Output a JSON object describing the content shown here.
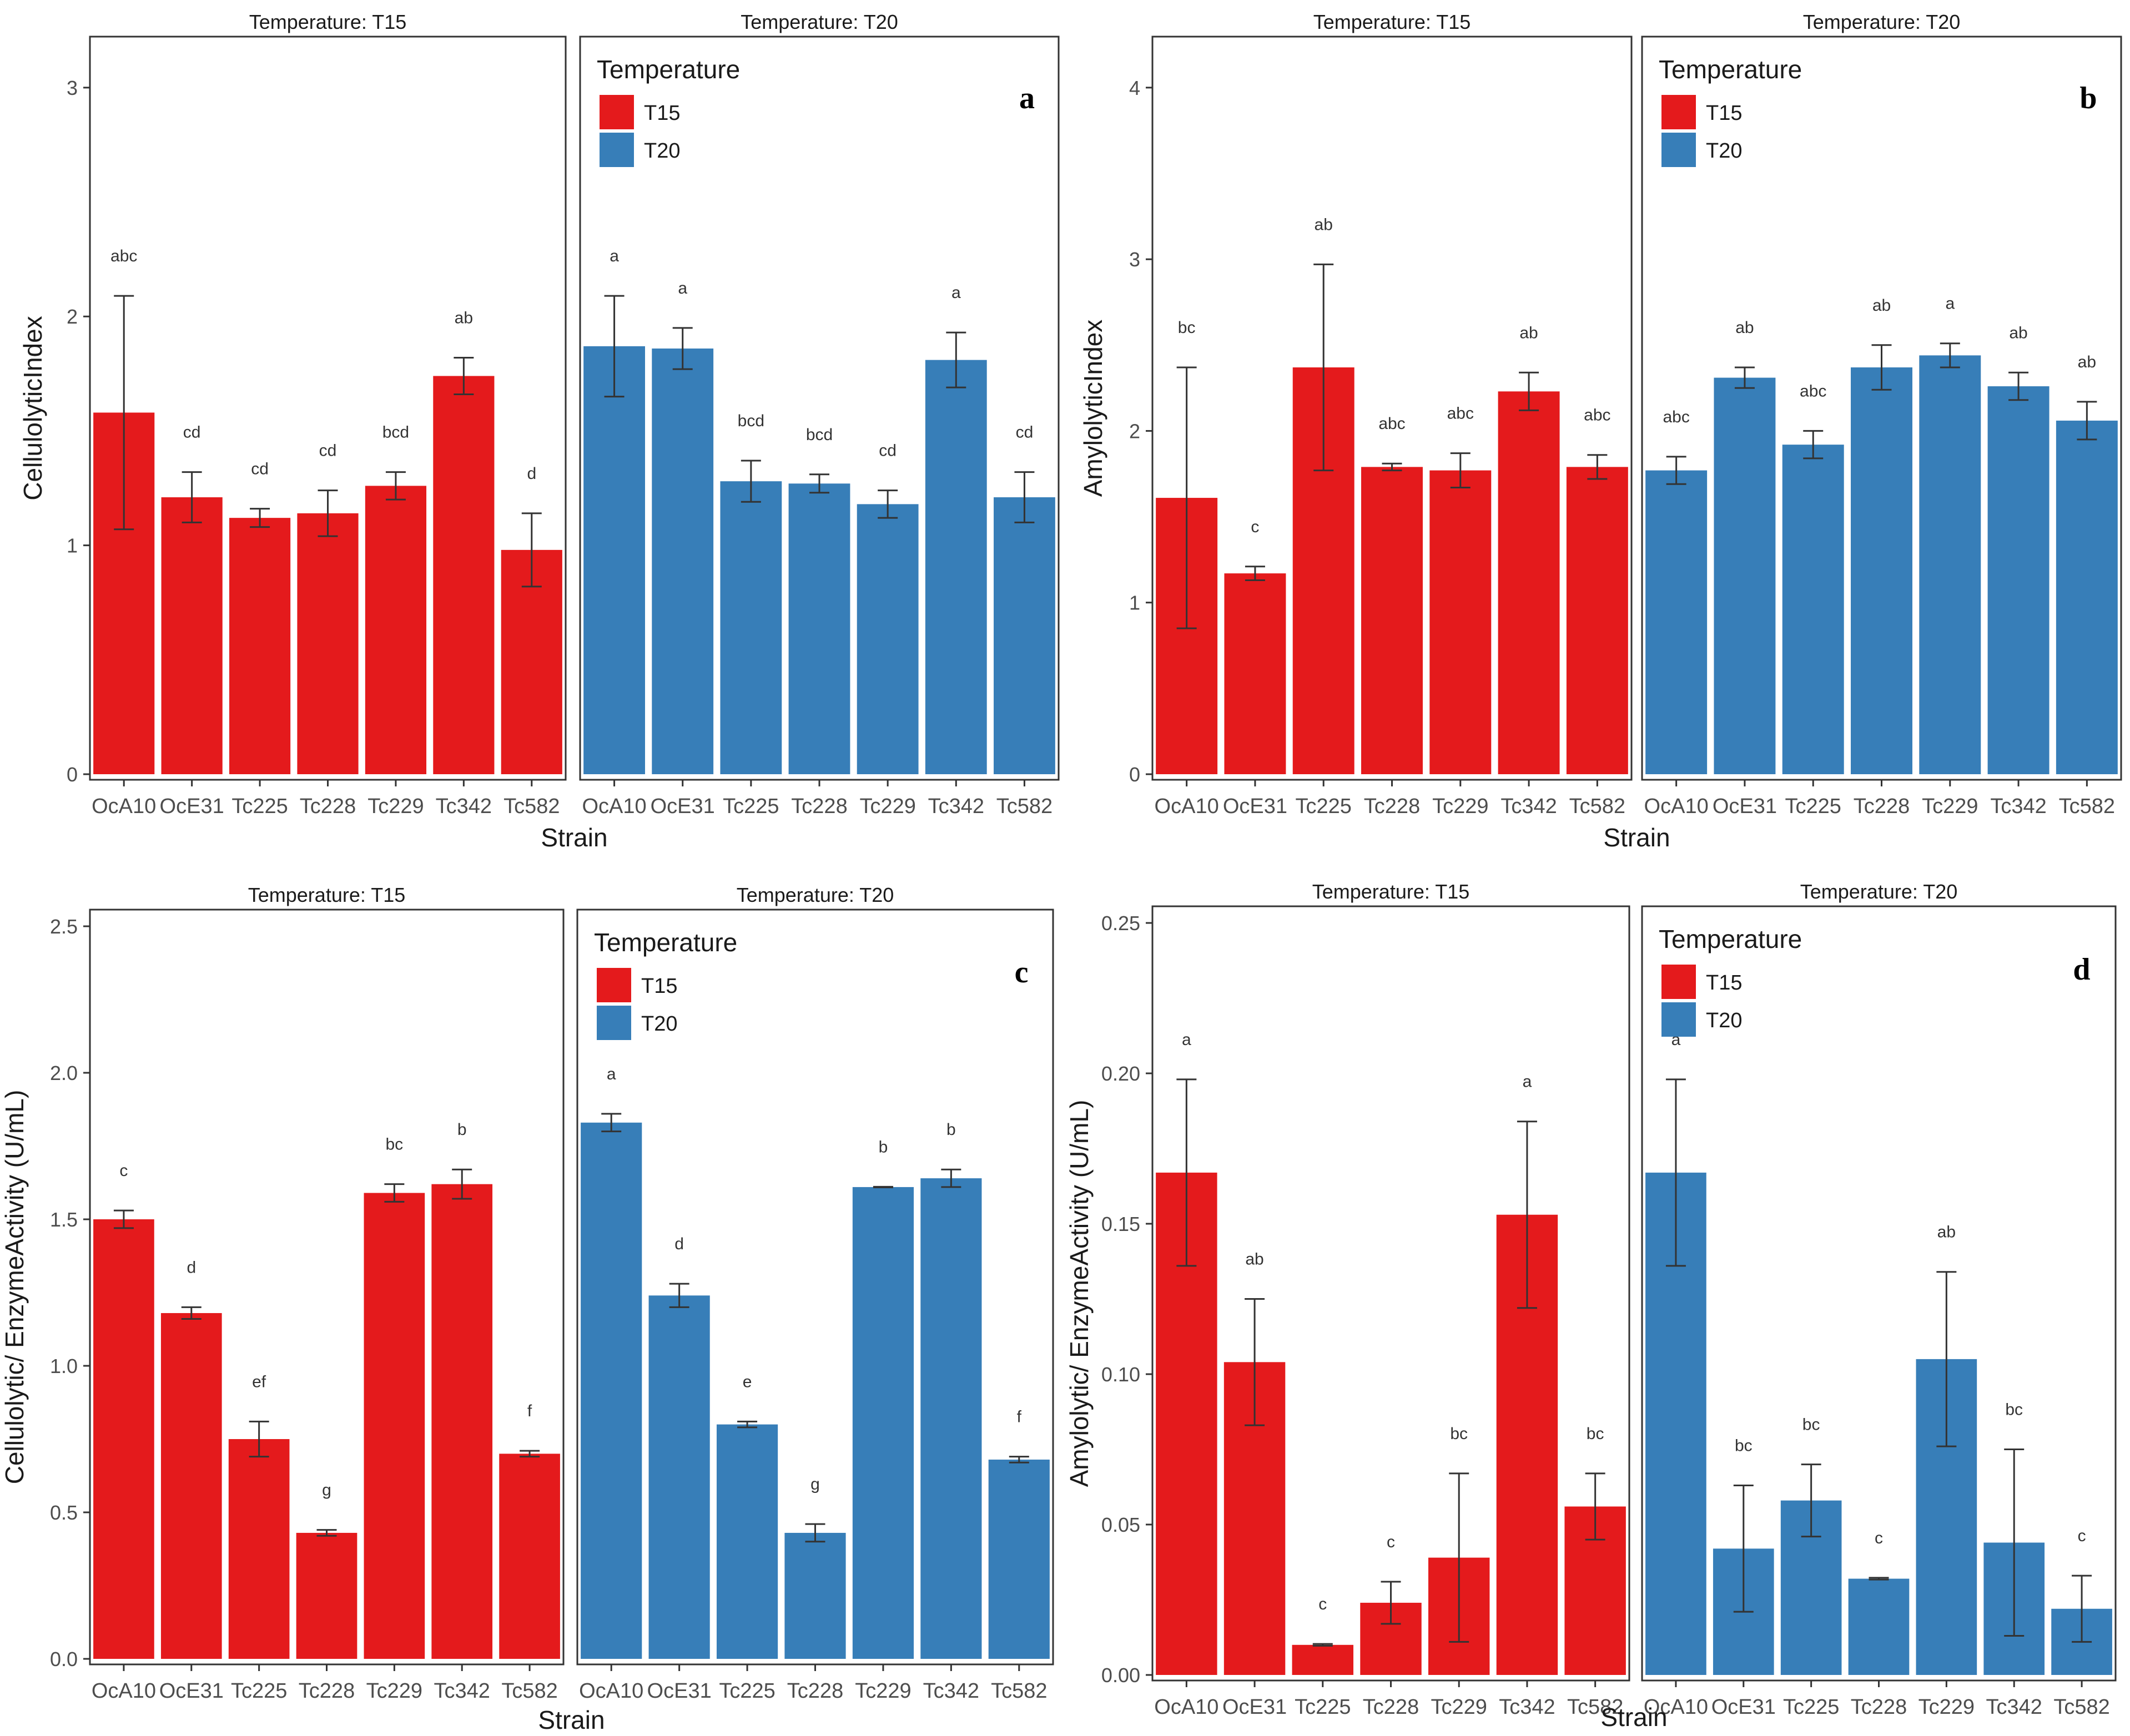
{
  "legend": {
    "title": "Temperature",
    "entries": [
      "T15",
      "T20"
    ]
  },
  "colors": {
    "T15": "#e41a1c",
    "T20": "#377eb8"
  },
  "chart_data": [
    {
      "type": "bar",
      "panel": "a",
      "ylabel": "CellulolyticIndex",
      "xlabel": "Strain",
      "ylim": [
        0,
        3.15
      ],
      "yticks": [
        0,
        1,
        2,
        3
      ],
      "yticklabels": [
        "0",
        "1",
        "2",
        "3"
      ],
      "facets": [
        {
          "title": "Temperature: T15",
          "temperature": "T15",
          "categories": [
            "OcA10",
            "OcE31",
            "Tc225",
            "Tc228",
            "Tc229",
            "Tc342",
            "Tc582"
          ],
          "values": [
            1.58,
            1.21,
            1.12,
            1.14,
            1.26,
            1.74,
            0.98
          ],
          "errors": [
            0.51,
            0.11,
            0.04,
            0.1,
            0.06,
            0.08,
            0.16
          ],
          "letters": [
            "abc",
            "cd",
            "cd",
            "cd",
            "bcd",
            "ab",
            "d"
          ]
        },
        {
          "title": "Temperature: T20",
          "temperature": "T20",
          "categories": [
            "OcA10",
            "OcE31",
            "Tc225",
            "Tc228",
            "Tc229",
            "Tc342",
            "Tc582"
          ],
          "values": [
            1.87,
            1.86,
            1.28,
            1.27,
            1.18,
            1.81,
            1.21
          ],
          "errors": [
            0.22,
            0.09,
            0.09,
            0.04,
            0.06,
            0.12,
            0.11
          ],
          "letters": [
            "a",
            "a",
            "bcd",
            "bcd",
            "cd",
            "a",
            "cd"
          ]
        }
      ]
    },
    {
      "type": "bar",
      "panel": "b",
      "ylabel": "AmylolyticIndex",
      "xlabel": "Strain",
      "ylim": [
        0,
        4.2
      ],
      "yticks": [
        0,
        1,
        2,
        3,
        4
      ],
      "yticklabels": [
        "0",
        "1",
        "2",
        "3",
        "4"
      ],
      "facets": [
        {
          "title": "Temperature: T15",
          "temperature": "T15",
          "categories": [
            "OcA10",
            "OcE31",
            "Tc225",
            "Tc228",
            "Tc229",
            "Tc342",
            "Tc582"
          ],
          "values": [
            1.61,
            1.17,
            2.37,
            1.79,
            1.77,
            2.23,
            1.79
          ],
          "errors": [
            0.76,
            0.04,
            0.6,
            0.02,
            0.1,
            0.11,
            0.07
          ],
          "letters": [
            "bc",
            "c",
            "ab",
            "abc",
            "abc",
            "ab",
            "abc"
          ]
        },
        {
          "title": "Temperature: T20",
          "temperature": "T20",
          "categories": [
            "OcA10",
            "OcE31",
            "Tc225",
            "Tc228",
            "Tc229",
            "Tc342",
            "Tc582"
          ],
          "values": [
            1.77,
            2.31,
            1.92,
            2.37,
            2.44,
            2.26,
            2.06
          ],
          "errors": [
            0.08,
            0.06,
            0.08,
            0.13,
            0.07,
            0.08,
            0.11
          ],
          "letters": [
            "abc",
            "ab",
            "abc",
            "ab",
            "a",
            "ab",
            "ab"
          ]
        }
      ]
    },
    {
      "type": "bar",
      "panel": "c",
      "ylabel": "Cellulolytic/ EnzymeActivity (U/mL)",
      "xlabel": "Strain",
      "ylim": [
        0,
        2.5
      ],
      "yticks": [
        0,
        0.5,
        1,
        1.5,
        2,
        2.5
      ],
      "yticklabels": [
        "0.0",
        "0.5",
        "1.0",
        "1.5",
        "2.0",
        "2.5"
      ],
      "facets": [
        {
          "title": "Temperature: T15",
          "temperature": "T15",
          "categories": [
            "OcA10",
            "OcE31",
            "Tc225",
            "Tc228",
            "Tc229",
            "Tc342",
            "Tc582"
          ],
          "values": [
            1.5,
            1.18,
            0.75,
            0.43,
            1.59,
            1.62,
            0.7
          ],
          "errors": [
            0.03,
            0.02,
            0.06,
            0.01,
            0.03,
            0.05,
            0.01
          ],
          "letters": [
            "c",
            "d",
            "ef",
            "g",
            "bc",
            "b",
            "f"
          ]
        },
        {
          "title": "Temperature: T20",
          "temperature": "T20",
          "categories": [
            "OcA10",
            "OcE31",
            "Tc225",
            "Tc228",
            "Tc229",
            "Tc342",
            "Tc582"
          ],
          "values": [
            1.83,
            1.24,
            0.8,
            0.43,
            1.61,
            1.64,
            0.68
          ],
          "errors": [
            0.03,
            0.04,
            0.01,
            0.03,
            0.001,
            0.03,
            0.01
          ],
          "letters": [
            "a",
            "d",
            "e",
            "g",
            "b",
            "b",
            "f"
          ]
        }
      ]
    },
    {
      "type": "bar",
      "panel": "d",
      "ylabel": "Amylolytic/ EnzymeActivity (U/mL)",
      "xlabel": "Strain",
      "ylim": [
        0,
        0.25
      ],
      "yticks": [
        0,
        0.05,
        0.1,
        0.15,
        0.2,
        0.25
      ],
      "yticklabels": [
        "0.00",
        "0.05",
        "0.10",
        "0.15",
        "0.20",
        "0.25"
      ],
      "facets": [
        {
          "title": "Temperature: T15",
          "temperature": "T15",
          "categories": [
            "OcA10",
            "OcE31",
            "Tc225",
            "Tc228",
            "Tc229",
            "Tc342",
            "Tc582"
          ],
          "values": [
            0.167,
            0.104,
            0.01,
            0.024,
            0.039,
            0.153,
            0.056
          ],
          "errors": [
            0.031,
            0.021,
            0.0003,
            0.007,
            0.028,
            0.031,
            0.011
          ],
          "letters": [
            "a",
            "ab",
            "c",
            "c",
            "bc",
            "a",
            "bc"
          ]
        },
        {
          "title": "Temperature: T20",
          "temperature": "T20",
          "categories": [
            "OcA10",
            "OcE31",
            "Tc225",
            "Tc228",
            "Tc229",
            "Tc342",
            "Tc582"
          ],
          "values": [
            0.167,
            0.042,
            0.058,
            0.032,
            0.105,
            0.044,
            0.022
          ],
          "errors": [
            0.031,
            0.021,
            0.012,
            0.0003,
            0.029,
            0.031,
            0.011
          ],
          "letters": [
            "a",
            "bc",
            "bc",
            "c",
            "ab",
            "bc",
            "c"
          ]
        }
      ]
    }
  ]
}
